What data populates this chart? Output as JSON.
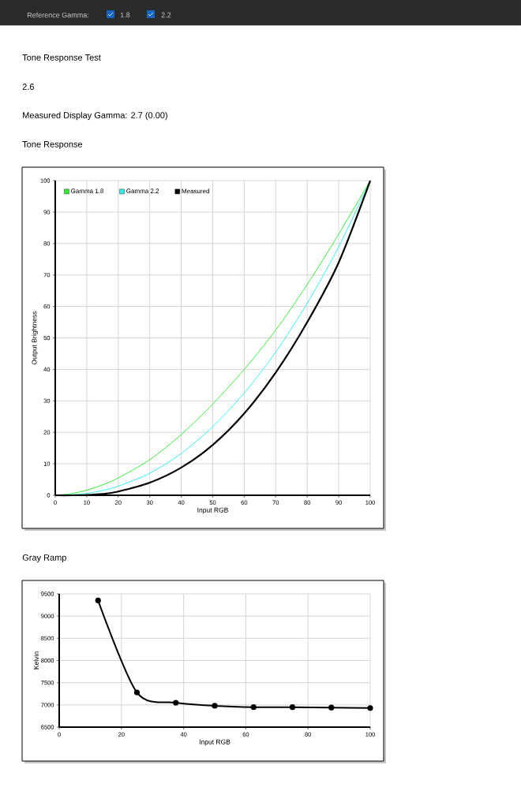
{
  "chart_data": [
    {
      "type": "line",
      "title": "Tone Response",
      "annotations": [
        "Reference Gamma:",
        "1.8",
        "2.2",
        "Tone Response Test",
        "2.6",
        "Measured Display Gamma: 2.7 (0.00)"
      ],
      "xlabel": "Input RGB",
      "ylabel": "Output Brightness",
      "xlim": [
        0,
        100
      ],
      "ylim": [
        0,
        100
      ],
      "xticks": [
        0,
        10,
        20,
        30,
        40,
        50,
        60,
        70,
        80,
        90,
        100
      ],
      "yticks": [
        0,
        10,
        20,
        30,
        40,
        50,
        60,
        70,
        80,
        90,
        100
      ],
      "x": [
        0,
        5,
        10,
        15,
        20,
        30,
        40,
        50,
        60,
        70,
        80,
        90,
        100
      ],
      "series": [
        {
          "name": "Gamma 1.8",
          "color": "#33ee33",
          "values": [
            0,
            0.5,
            1.6,
            3.3,
            5.5,
            11.3,
            19.3,
            29,
            40,
            52.5,
            67,
            83,
            100
          ]
        },
        {
          "name": "Gamma 2.2",
          "color": "#33eeee",
          "values": [
            0,
            0.1,
            0.6,
            1.5,
            2.9,
            7,
            13.3,
            21.8,
            32.5,
            45.5,
            61,
            79,
            100
          ]
        },
        {
          "name": "Measured",
          "color": "#000000",
          "values": [
            0,
            0,
            0.1,
            0.4,
            1.2,
            4,
            8.8,
            16,
            26,
            39,
            55,
            74,
            100
          ]
        }
      ],
      "grid": true,
      "legend": "top left",
      "marker": "none"
    },
    {
      "type": "line",
      "title": "Gray Ramp",
      "xlabel": "Input RGB",
      "ylabel": "Kelvin",
      "xlim": [
        0,
        100
      ],
      "ylim": [
        6500,
        9500
      ],
      "xticks": [
        0,
        20,
        40,
        60,
        80,
        100
      ],
      "yticks": [
        6500,
        7000,
        7500,
        8000,
        8500,
        9000,
        9500
      ],
      "x": [
        12.5,
        25,
        37.5,
        50,
        62.5,
        75,
        87.5,
        100
      ],
      "series": [
        {
          "color": "#000000",
          "values": [
            9350,
            7280,
            7050,
            6980,
            6950,
            6950,
            6940,
            6930
          ]
        }
      ],
      "grid": true,
      "marker": "circle"
    }
  ]
}
